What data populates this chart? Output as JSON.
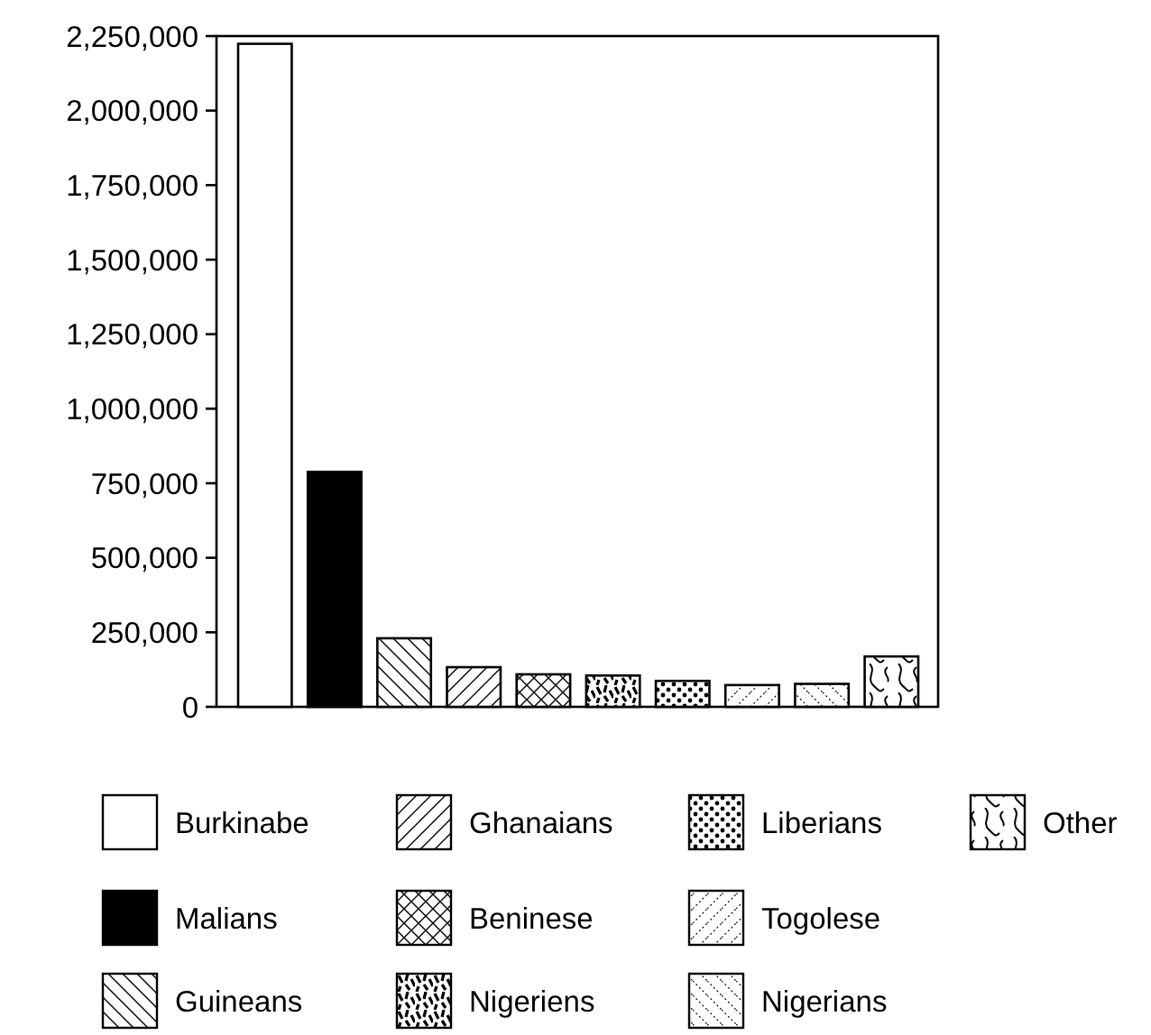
{
  "chart_data": {
    "type": "bar",
    "stacked": true,
    "categories": [
      null,
      null,
      null,
      null,
      null,
      null,
      null,
      null,
      null,
      null
    ],
    "series": [
      {
        "name": "Burkinabe",
        "color": "#ffffff",
        "values": [
          2224000,
          null,
          null,
          null,
          null,
          null,
          null,
          null,
          null,
          null
        ]
      },
      {
        "name": "Malians",
        "color": "#000000",
        "values": [
          null,
          788000,
          null,
          null,
          null,
          null,
          null,
          null,
          null,
          null
        ]
      },
      {
        "name": "Guineans",
        "color": "#000000",
        "values": [
          null,
          null,
          230000,
          null,
          null,
          null,
          null,
          null,
          null,
          null
        ]
      },
      {
        "name": "Ghanaians",
        "color": "#000000",
        "values": [
          null,
          null,
          null,
          133000,
          null,
          null,
          null,
          null,
          null,
          null
        ]
      },
      {
        "name": "Beninese",
        "color": "#000000",
        "values": [
          null,
          null,
          null,
          null,
          109000,
          null,
          null,
          null,
          null,
          null
        ]
      },
      {
        "name": "Nigeriens",
        "color": "#000000",
        "values": [
          null,
          null,
          null,
          null,
          null,
          105000,
          null,
          null,
          null,
          null
        ]
      },
      {
        "name": "Liberians",
        "color": "#000000",
        "values": [
          null,
          null,
          null,
          null,
          null,
          null,
          87000,
          null,
          null,
          null
        ]
      },
      {
        "name": "Togolese",
        "color": "#000000",
        "values": [
          null,
          null,
          null,
          null,
          null,
          null,
          null,
          73000,
          null,
          null
        ]
      },
      {
        "name": "Nigerians",
        "color": "#000000",
        "values": [
          null,
          null,
          null,
          null,
          null,
          null,
          null,
          null,
          77000,
          null
        ]
      },
      {
        "name": "Other",
        "color": "#000000",
        "values": [
          null,
          null,
          null,
          null,
          null,
          null,
          null,
          null,
          null,
          169000
        ]
      }
    ],
    "ylim": [
      0,
      2250000
    ],
    "yticks": [
      0,
      {
        "value": 250000,
        "label": "250,000"
      },
      {
        "value": 500000,
        "label": "500,000"
      },
      {
        "value": 750000,
        "label": "750,000"
      },
      {
        "value": 1000000,
        "label": "1,000,000"
      },
      {
        "value": 1250000,
        "label": "1,250,000"
      },
      {
        "value": 1500000,
        "label": "1,500,000"
      },
      {
        "value": 1750000,
        "label": "1,750,000"
      },
      {
        "value": 2000000,
        "label": "2,000,000"
      },
      {
        "value": 2250000,
        "label": "2,250,000"
      }
    ],
    "tick_labels": "y",
    "grid": false,
    "legend": "bottom"
  }
}
